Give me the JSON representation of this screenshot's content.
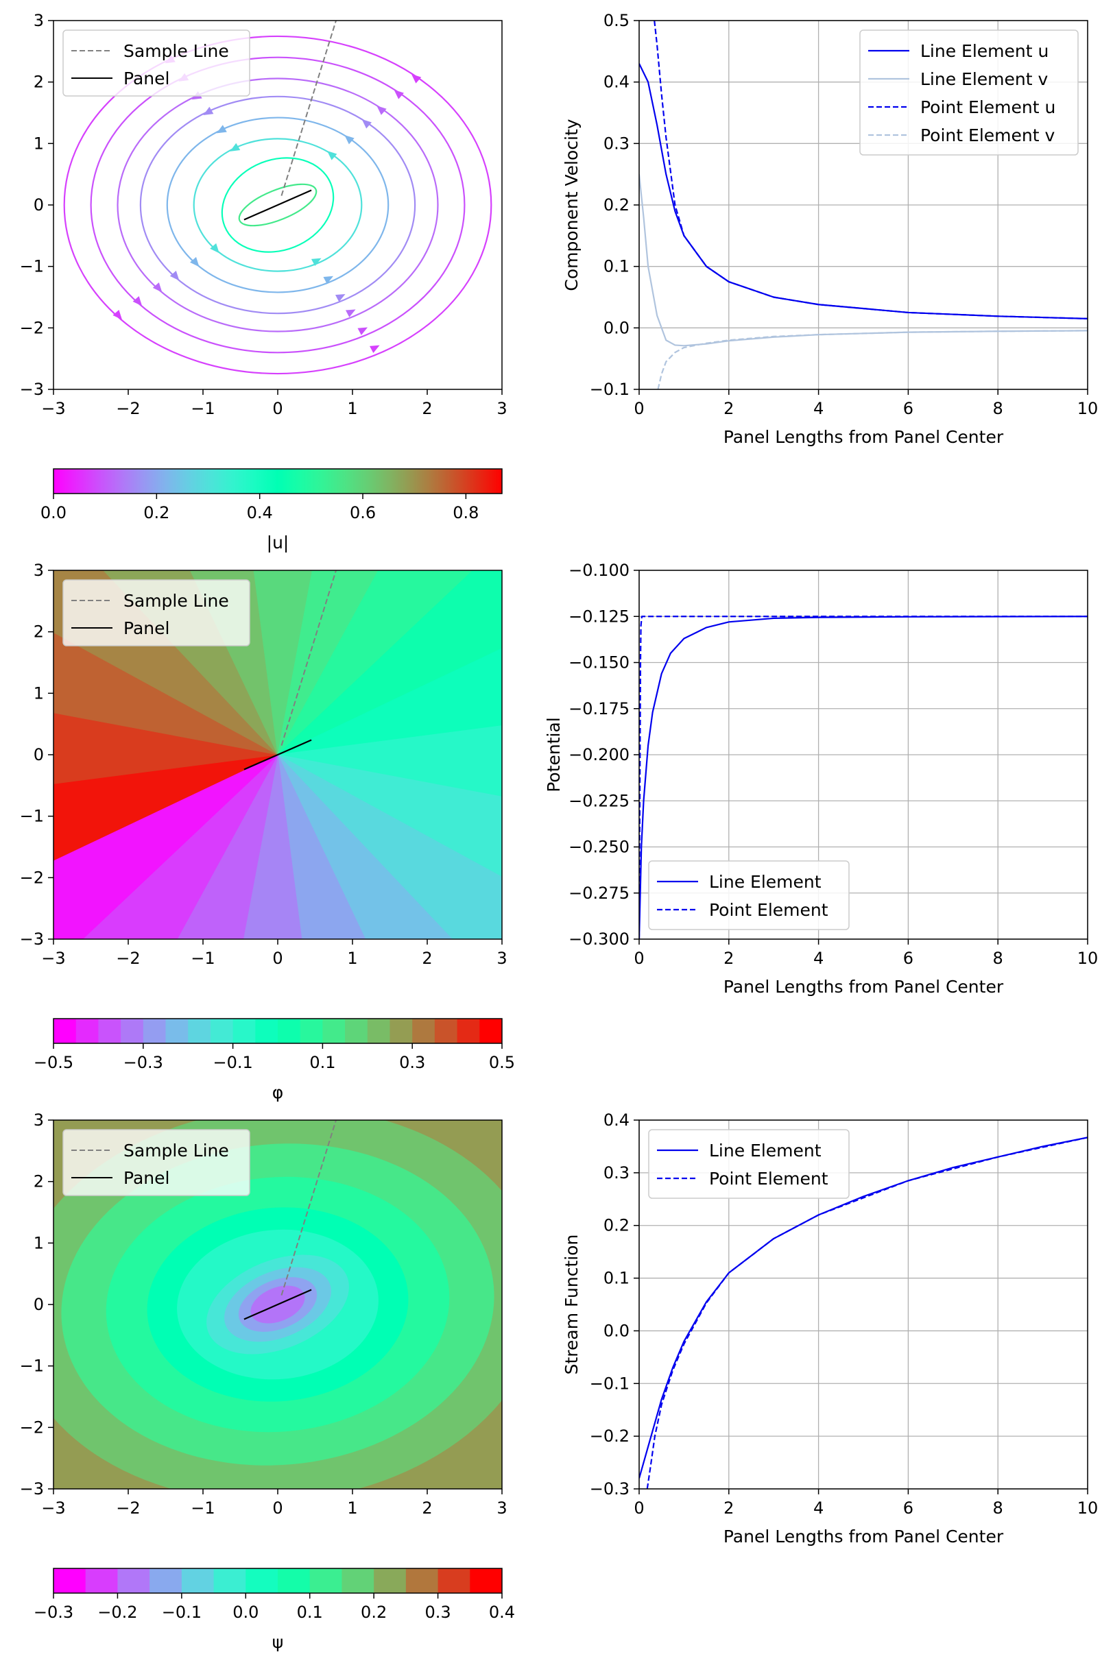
{
  "figure": {
    "panels": {
      "velocity_field": {
        "xticks": [
          "−3",
          "−2",
          "−1",
          "0",
          "1",
          "2",
          "3"
        ],
        "yticks": [
          "−3",
          "−2",
          "−1",
          "0",
          "1",
          "2",
          "3"
        ],
        "legend": [
          "Sample Line",
          "Panel"
        ],
        "colorbar": {
          "label": "|u|",
          "ticks": [
            "0.0",
            "0.2",
            "0.4",
            "0.6",
            "0.8"
          ],
          "max": 0.87
        }
      },
      "potential_field": {
        "xticks": [
          "−3",
          "−2",
          "−1",
          "0",
          "1",
          "2",
          "3"
        ],
        "yticks": [
          "−3",
          "−2",
          "−1",
          "0",
          "1",
          "2",
          "3"
        ],
        "legend": [
          "Sample Line",
          "Panel"
        ],
        "colorbar": {
          "label": "φ",
          "ticks": [
            "−0.5",
            "−0.3",
            "−0.1",
            "0.1",
            "0.3",
            "0.5"
          ]
        }
      },
      "stream_field": {
        "xticks": [
          "−3",
          "−2",
          "−1",
          "0",
          "1",
          "2",
          "3"
        ],
        "yticks": [
          "−3",
          "−2",
          "−1",
          "0",
          "1",
          "2",
          "3"
        ],
        "legend": [
          "Sample Line",
          "Panel"
        ],
        "colorbar": {
          "label": "ψ",
          "ticks": [
            "−0.3",
            "−0.2",
            "−0.1",
            "0.0",
            "0.1",
            "0.2",
            "0.3",
            "0.4"
          ]
        }
      }
    }
  },
  "chart_data": [
    {
      "type": "streamplot",
      "panel": "velocity_field",
      "xlim": [
        -3,
        3
      ],
      "ylim": [
        -3,
        3
      ],
      "sample_line": {
        "x": [
          0.05,
          0.78
        ],
        "y": [
          0.15,
          3.0
        ]
      },
      "panel_segment": {
        "x": [
          -0.45,
          0.45
        ],
        "y": [
          -0.24,
          0.24
        ]
      },
      "colormap": "rainbow",
      "color_range": [
        0,
        0.87
      ],
      "legend": [
        "Sample Line",
        "Panel"
      ]
    },
    {
      "type": "line",
      "xlabel": "Panel Lengths from Panel Center",
      "ylabel": "Component Velocity",
      "xlim": [
        0,
        10
      ],
      "ylim": [
        -0.1,
        0.5
      ],
      "xticks": [
        "0",
        "2",
        "4",
        "6",
        "8",
        "10"
      ],
      "yticks": [
        "−0.1",
        "0.0",
        "0.1",
        "0.2",
        "0.3",
        "0.4",
        "0.5"
      ],
      "grid": true,
      "legend_position": "top-right",
      "series": [
        {
          "name": "Line Element u",
          "color": "#0000ee",
          "style": "solid",
          "x": [
            0,
            0.2,
            0.4,
            0.6,
            0.8,
            1,
            1.5,
            2,
            3,
            4,
            6,
            8,
            10
          ],
          "y": [
            0.43,
            0.4,
            0.33,
            0.25,
            0.19,
            0.15,
            0.1,
            0.075,
            0.05,
            0.038,
            0.025,
            0.019,
            0.015
          ]
        },
        {
          "name": "Line Element v",
          "color": "#b0c4de",
          "style": "solid",
          "x": [
            0,
            0.1,
            0.2,
            0.4,
            0.6,
            0.8,
            1,
            1.5,
            2,
            3,
            4,
            6,
            8,
            10
          ],
          "y": [
            0.25,
            0.18,
            0.1,
            0.02,
            -0.02,
            -0.028,
            -0.029,
            -0.026,
            -0.021,
            -0.015,
            -0.011,
            -0.007,
            -0.0055,
            -0.0045
          ]
        },
        {
          "name": "Point Element u",
          "color": "#0000ee",
          "style": "dashed",
          "x": [
            0.34,
            0.4,
            0.5,
            0.6,
            0.8,
            1,
            1.5,
            2,
            3,
            4,
            6,
            8,
            10
          ],
          "y": [
            0.5,
            0.46,
            0.38,
            0.31,
            0.2,
            0.15,
            0.1,
            0.075,
            0.05,
            0.038,
            0.025,
            0.019,
            0.015
          ]
        },
        {
          "name": "Point Element v",
          "color": "#b0c4de",
          "style": "dashed",
          "x": [
            0.42,
            0.5,
            0.6,
            0.8,
            1,
            1.5,
            2,
            3,
            4,
            6,
            8,
            10
          ],
          "y": [
            -0.1,
            -0.075,
            -0.055,
            -0.04,
            -0.032,
            -0.025,
            -0.02,
            -0.014,
            -0.011,
            -0.007,
            -0.0055,
            -0.0045
          ]
        }
      ]
    },
    {
      "type": "filled-contour",
      "panel": "potential_field",
      "xlim": [
        -3,
        3
      ],
      "ylim": [
        -3,
        3
      ],
      "levels": [
        -0.5,
        -0.45,
        -0.4,
        -0.35,
        -0.3,
        -0.25,
        -0.2,
        -0.15,
        -0.1,
        -0.05,
        0,
        0.05,
        0.1,
        0.15,
        0.2,
        0.25,
        0.3,
        0.35,
        0.4,
        0.45,
        0.5
      ],
      "colormap": "rainbow",
      "legend": [
        "Sample Line",
        "Panel"
      ]
    },
    {
      "type": "line",
      "xlabel": "Panel Lengths from Panel Center",
      "ylabel": "Potential",
      "xlim": [
        0,
        10
      ],
      "ylim": [
        -0.3,
        -0.1
      ],
      "xticks": [
        "0",
        "2",
        "4",
        "6",
        "8",
        "10"
      ],
      "yticks": [
        "−0.300",
        "−0.275",
        "−0.250",
        "−0.225",
        "−0.200",
        "−0.175",
        "−0.150",
        "−0.125",
        "−0.100"
      ],
      "grid": true,
      "legend_position": "bottom-left",
      "series": [
        {
          "name": "Line Element",
          "color": "#0000ee",
          "style": "solid",
          "x": [
            0,
            0.05,
            0.1,
            0.2,
            0.3,
            0.5,
            0.7,
            1,
            1.5,
            2,
            3,
            4,
            6,
            8,
            10
          ],
          "y": [
            -0.3,
            -0.25,
            -0.225,
            -0.195,
            -0.177,
            -0.156,
            -0.145,
            -0.137,
            -0.131,
            -0.128,
            -0.126,
            -0.1255,
            -0.1252,
            -0.1251,
            -0.125
          ]
        },
        {
          "name": "Point Element",
          "color": "#0000ee",
          "style": "dashed",
          "x": [
            0,
            0.01,
            0.02,
            0.03,
            0.04,
            0.06,
            10
          ],
          "y": [
            -0.3,
            -0.25,
            -0.2,
            -0.15,
            -0.13,
            -0.125,
            -0.125
          ]
        }
      ]
    },
    {
      "type": "filled-contour",
      "panel": "stream_field",
      "xlim": [
        -3,
        3
      ],
      "ylim": [
        -3,
        3
      ],
      "levels": [
        -0.3,
        -0.25,
        -0.2,
        -0.15,
        -0.1,
        -0.05,
        0,
        0.05,
        0.1,
        0.15,
        0.2,
        0.25,
        0.3,
        0.35,
        0.4
      ],
      "colormap": "rainbow",
      "legend": [
        "Sample Line",
        "Panel"
      ]
    },
    {
      "type": "line",
      "xlabel": "Panel Lengths from Panel Center",
      "ylabel": "Stream Function",
      "xlim": [
        0,
        10
      ],
      "ylim": [
        -0.3,
        0.4
      ],
      "xticks": [
        "0",
        "2",
        "4",
        "6",
        "8",
        "10"
      ],
      "yticks": [
        "−0.3",
        "−0.2",
        "−0.1",
        "0.0",
        "0.1",
        "0.2",
        "0.3",
        "0.4"
      ],
      "grid": true,
      "legend_position": "top-left",
      "series": [
        {
          "name": "Line Element",
          "color": "#0000ee",
          "style": "solid",
          "x": [
            0,
            0.1,
            0.3,
            0.5,
            0.75,
            1,
            1.5,
            2,
            3,
            4,
            5,
            6,
            7,
            8,
            9,
            10
          ],
          "y": [
            -0.28,
            -0.25,
            -0.19,
            -0.13,
            -0.07,
            -0.02,
            0.055,
            0.11,
            0.175,
            0.22,
            0.255,
            0.285,
            0.31,
            0.33,
            0.35,
            0.367
          ]
        },
        {
          "name": "Point Element",
          "color": "#0000ee",
          "style": "dashed",
          "x": [
            0.18,
            0.25,
            0.35,
            0.5,
            0.75,
            1,
            1.5,
            2,
            3,
            4,
            6,
            8,
            10
          ],
          "y": [
            -0.3,
            -0.26,
            -0.2,
            -0.14,
            -0.075,
            -0.025,
            0.053,
            0.11,
            0.175,
            0.22,
            0.285,
            0.33,
            0.367
          ]
        }
      ]
    }
  ]
}
